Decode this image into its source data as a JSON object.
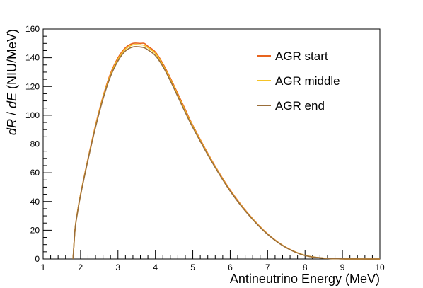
{
  "chart_data": {
    "type": "line",
    "xlabel": "Antineutrino Energy (MeV)",
    "ylabel_parts": [
      "dR",
      " / ",
      "dE",
      " (NIU/MeV)"
    ],
    "xlim": [
      1,
      10
    ],
    "ylim": [
      0,
      160
    ],
    "x_ticks": [
      1,
      2,
      3,
      4,
      5,
      6,
      7,
      8,
      9,
      10
    ],
    "y_ticks": [
      0,
      20,
      40,
      60,
      80,
      100,
      120,
      140,
      160
    ],
    "grid": false,
    "legend_position": "top-right",
    "x": [
      1.8,
      1.85,
      1.9,
      2.0,
      2.2,
      2.4,
      2.6,
      2.8,
      3.0,
      3.2,
      3.4,
      3.6,
      3.7,
      3.8,
      4.0,
      4.2,
      4.4,
      4.6,
      4.8,
      5.0,
      5.5,
      6.0,
      6.5,
      7.0,
      7.5,
      8.0,
      8.5,
      9.0,
      9.5,
      10.0
    ],
    "series": [
      {
        "name": "AGR start",
        "color": "#e8641e",
        "values": [
          0,
          20,
          30,
          45,
          70,
          93,
          113,
          129,
          140,
          147,
          150,
          150,
          150,
          148,
          144,
          136,
          126,
          115,
          104,
          93,
          69,
          48,
          31,
          17.5,
          8,
          2.5,
          0.6,
          0.1,
          0,
          0
        ]
      },
      {
        "name": "AGR middle",
        "color": "#f5c327",
        "values": [
          0,
          20,
          29.7,
          44.7,
          69.5,
          92.3,
          112.2,
          128,
          139,
          146,
          149,
          149,
          148.6,
          147,
          143,
          135,
          125,
          114,
          103,
          92.3,
          68.5,
          47.6,
          30.7,
          17.3,
          7.9,
          2.5,
          0.6,
          0.1,
          0,
          0
        ]
      },
      {
        "name": "AGR end",
        "color": "#9a6e3a",
        "values": [
          0,
          19.8,
          29.4,
          44.3,
          69,
          91.6,
          111.3,
          127,
          137.8,
          144.7,
          147.5,
          147.5,
          147,
          145.5,
          141.5,
          134,
          124,
          113,
          102,
          91.5,
          68,
          47.2,
          30.4,
          17.1,
          7.8,
          2.4,
          0.6,
          0.1,
          0,
          0
        ]
      }
    ]
  }
}
